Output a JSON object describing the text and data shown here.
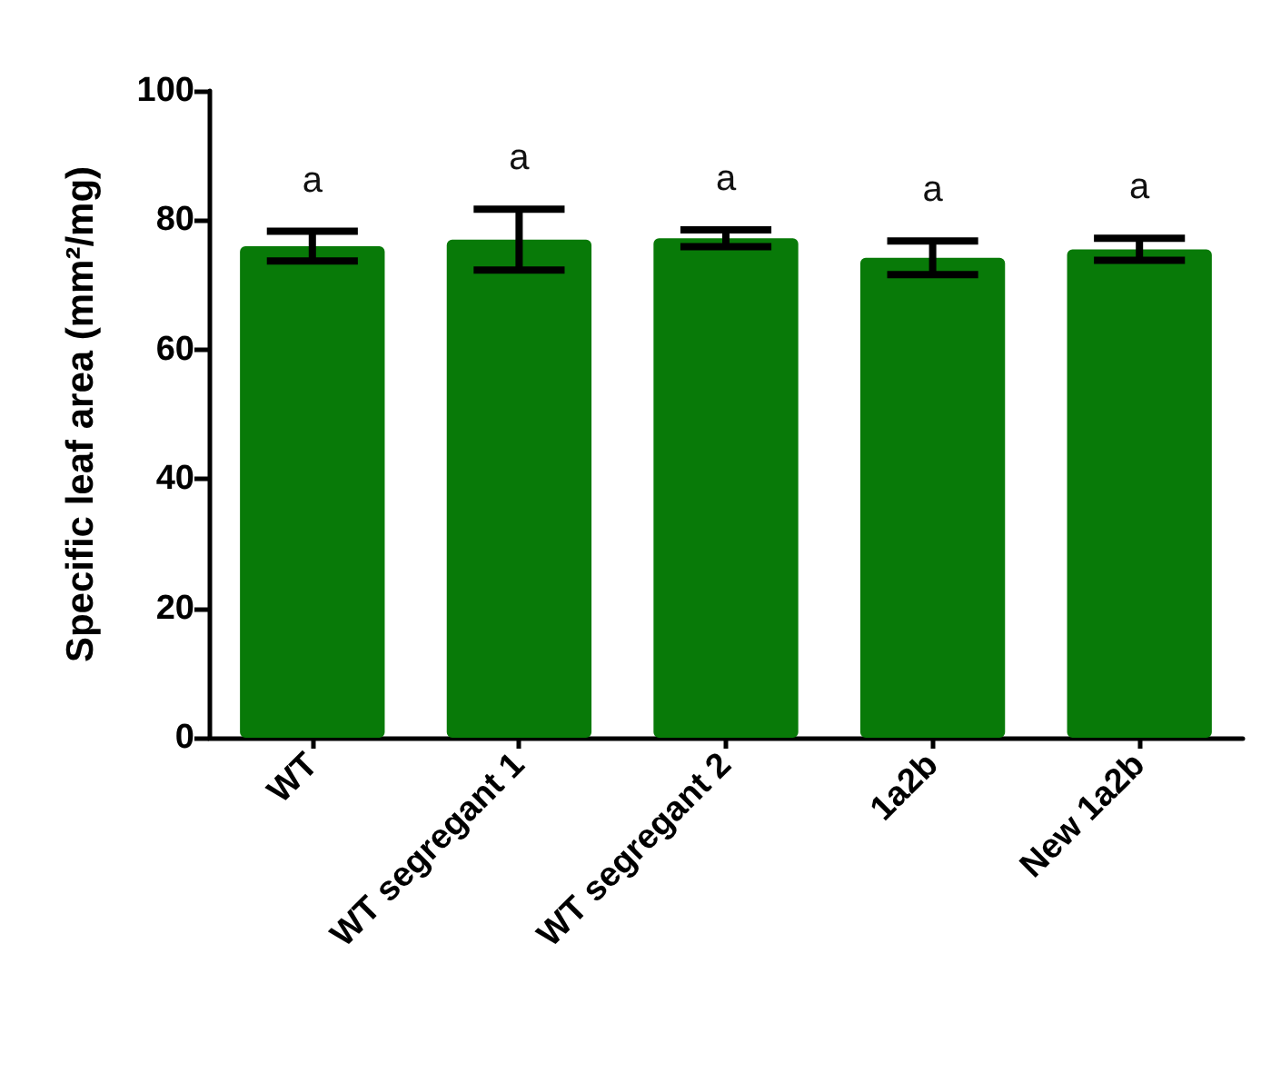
{
  "chart_data": {
    "type": "bar",
    "ylabel": "Specific leaf area (mm²/mg)",
    "categories": [
      "WT",
      "WT segregant 1",
      "WT segregant 2",
      "1a2b",
      "New 1a2b"
    ],
    "values": [
      76,
      77,
      77.2,
      74.2,
      75.5
    ],
    "errors": [
      2.3,
      4.7,
      1.3,
      2.6,
      1.7
    ],
    "color": "#087a08",
    "ylim": [
      0,
      100
    ],
    "yticks": [
      0,
      20,
      40,
      60,
      80,
      100
    ],
    "grid": false,
    "annotations": [
      "a",
      "a",
      "a",
      "a",
      "a"
    ]
  }
}
